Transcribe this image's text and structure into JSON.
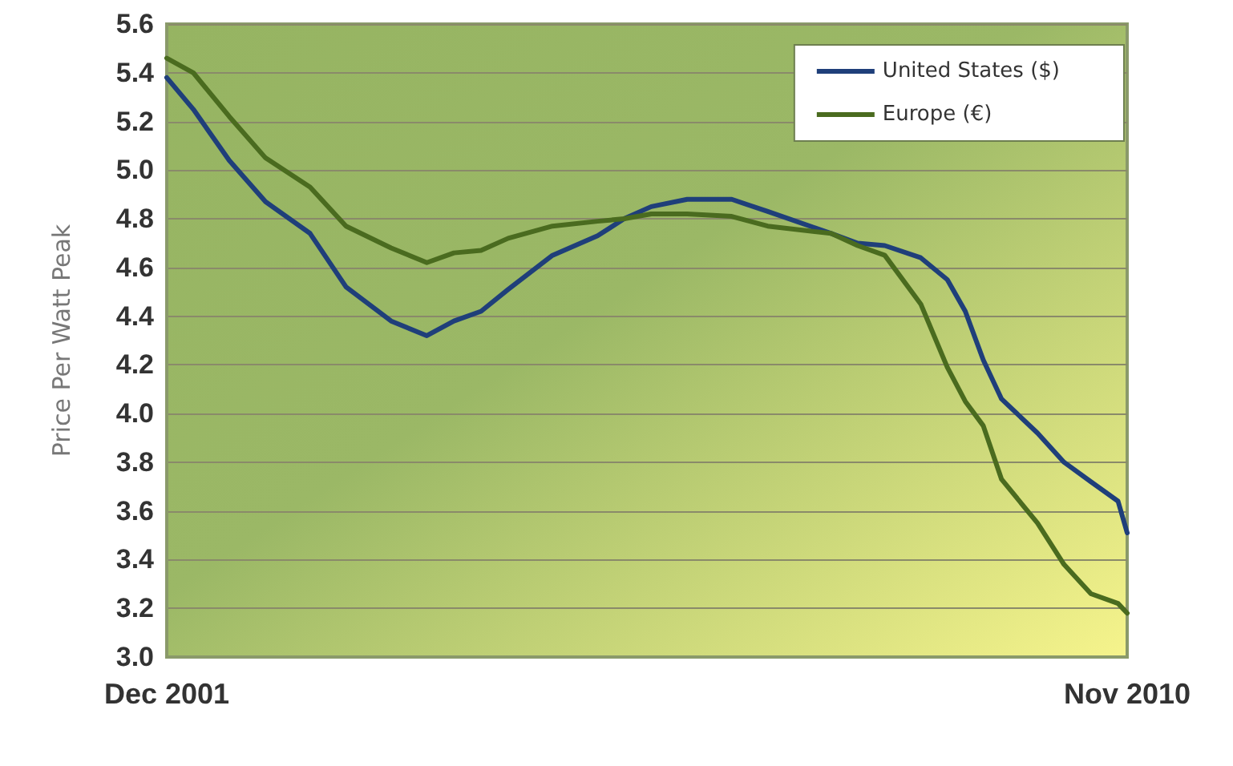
{
  "chart_data": {
    "type": "line",
    "ylabel": "Price Per Watt Peak",
    "x": [
      "2001-12",
      "2002-03",
      "2002-07",
      "2002-11",
      "2003-04",
      "2003-08",
      "2004-01",
      "2004-05",
      "2004-08",
      "2004-11",
      "2005-02",
      "2005-07",
      "2005-12",
      "2006-03",
      "2006-06",
      "2006-10",
      "2007-03",
      "2007-07",
      "2008-02",
      "2008-05",
      "2008-08",
      "2008-12",
      "2009-03",
      "2009-05",
      "2009-07",
      "2009-09",
      "2010-01",
      "2010-04",
      "2010-07",
      "2010-10",
      "2010-11"
    ],
    "series": [
      {
        "name": "United States ($)",
        "color": "#1f3f7a",
        "values": [
          5.38,
          5.25,
          5.04,
          4.87,
          4.74,
          4.52,
          4.38,
          4.32,
          4.38,
          4.42,
          4.51,
          4.65,
          4.73,
          4.8,
          4.85,
          4.88,
          4.88,
          4.83,
          4.74,
          4.7,
          4.69,
          4.64,
          4.55,
          4.42,
          4.22,
          4.06,
          3.92,
          3.8,
          3.72,
          3.64,
          3.51
        ]
      },
      {
        "name": "Europe (€)",
        "color": "#4a6b1f",
        "values": [
          5.46,
          5.4,
          5.22,
          5.05,
          4.93,
          4.77,
          4.68,
          4.62,
          4.66,
          4.67,
          4.72,
          4.77,
          4.79,
          4.8,
          4.82,
          4.82,
          4.81,
          4.77,
          4.74,
          4.69,
          4.65,
          4.45,
          4.19,
          4.05,
          3.95,
          3.73,
          3.55,
          3.38,
          3.26,
          3.22,
          3.18
        ]
      }
    ],
    "xlim": [
      "2001-12",
      "2010-11"
    ],
    "xticks": [
      {
        "value": "2001-12",
        "label": "Dec 2001"
      },
      {
        "value": "2010-11",
        "label": "Nov 2010"
      }
    ],
    "ylim": [
      3.0,
      5.6
    ],
    "yticks": [
      {
        "value": 3.0,
        "label": "3.0"
      },
      {
        "value": 3.2,
        "label": "3.2"
      },
      {
        "value": 3.4,
        "label": "3.4"
      },
      {
        "value": 3.6,
        "label": "3.6"
      },
      {
        "value": 3.8,
        "label": "3.8"
      },
      {
        "value": 4.0,
        "label": "4.0"
      },
      {
        "value": 4.2,
        "label": "4.2"
      },
      {
        "value": 4.4,
        "label": "4.4"
      },
      {
        "value": 4.6,
        "label": "4.6"
      },
      {
        "value": 4.8,
        "label": "4.8"
      },
      {
        "value": 5.0,
        "label": "5.0"
      },
      {
        "value": 5.2,
        "label": "5.2"
      },
      {
        "value": 5.4,
        "label": "5.4"
      },
      {
        "value": 5.6,
        "label": "5.6"
      }
    ],
    "grid": "y",
    "legend": "top right",
    "marker": "none",
    "line_style": "solid"
  }
}
